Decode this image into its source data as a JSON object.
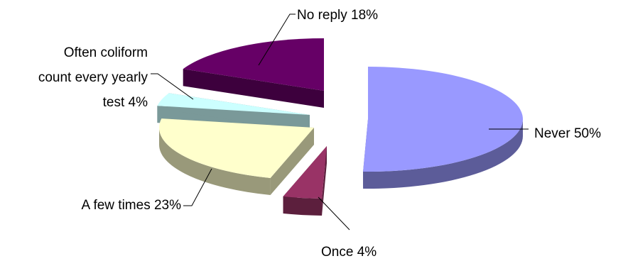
{
  "chart_data": {
    "type": "pie",
    "style": "3d-exploded",
    "title": "",
    "slices": [
      {
        "key": "never",
        "value": 50,
        "lines": [
          "Never  50%"
        ],
        "top": "#9999ff",
        "side": "#5c5c99"
      },
      {
        "key": "once",
        "value": 4,
        "lines": [
          "Once  4%"
        ],
        "top": "#993366",
        "side": "#5c1f3d"
      },
      {
        "key": "few",
        "value": 23,
        "lines": [
          "A few times  23%"
        ],
        "top": "#ffffcc",
        "side": "#99997a"
      },
      {
        "key": "often",
        "value": 4,
        "lines": [
          "Often coliform",
          "count every yearly",
          "test  4%"
        ],
        "top": "#ccffff",
        "side": "#7a9999"
      },
      {
        "key": "noreply",
        "value": 18,
        "lines": [
          "No reply  18%"
        ],
        "top": "#660066",
        "side": "#3d003d"
      }
    ]
  }
}
